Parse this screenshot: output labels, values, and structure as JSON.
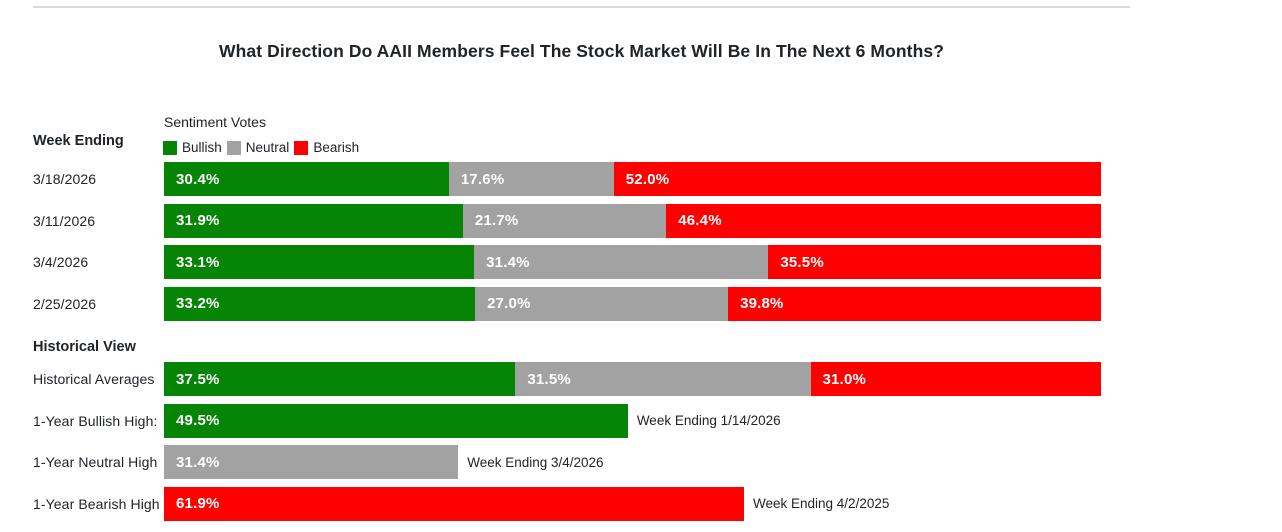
{
  "page": {
    "title": "What Direction Do AAII Members Feel The Stock Market Will Be In The Next 6 Months?"
  },
  "chart_data": {
    "type": "bar",
    "orientation": "horizontal",
    "stacked": true,
    "unit": "%",
    "xlim": [
      0,
      100
    ],
    "grid": false,
    "title": "What Direction Do AAII Members Feel The Stock Market Will Be In The Next 6 Months?",
    "categories_header": "Week Ending",
    "value_axis_header": "Sentiment Votes",
    "legend_position": "top-left",
    "legend": [
      "Bullish",
      "Neutral",
      "Bearish"
    ],
    "colors": {
      "Bullish": "#068406",
      "Neutral": "#a2a2a2",
      "Bearish": "#ff0000"
    },
    "categories": [
      "3/18/2026",
      "3/11/2026",
      "3/4/2026",
      "2/25/2026"
    ],
    "series": [
      {
        "name": "Bullish",
        "values": [
          30.4,
          31.9,
          33.1,
          33.2
        ]
      },
      {
        "name": "Neutral",
        "values": [
          17.6,
          21.7,
          31.4,
          27.0
        ]
      },
      {
        "name": "Bearish",
        "values": [
          52.0,
          46.4,
          35.5,
          39.8
        ]
      }
    ],
    "historical": {
      "header": "Historical View",
      "rows": [
        {
          "label": "Historical Averages",
          "segments": [
            {
              "series": "Bullish",
              "value": 37.5
            },
            {
              "series": "Neutral",
              "value": 31.5
            },
            {
              "series": "Bearish",
              "value": 31.0
            }
          ],
          "annotation": ""
        },
        {
          "label": "1-Year Bullish High:",
          "segments": [
            {
              "series": "Bullish",
              "value": 49.5
            }
          ],
          "annotation": "Week Ending 1/14/2026"
        },
        {
          "label": "1-Year Neutral High",
          "segments": [
            {
              "series": "Neutral",
              "value": 31.4
            }
          ],
          "annotation": "Week Ending 3/4/2026"
        },
        {
          "label": "1-Year Bearish High",
          "segments": [
            {
              "series": "Bearish",
              "value": 61.9
            }
          ],
          "annotation": "Week Ending 4/2/2025"
        }
      ]
    },
    "value_label_format": "0.0%"
  }
}
